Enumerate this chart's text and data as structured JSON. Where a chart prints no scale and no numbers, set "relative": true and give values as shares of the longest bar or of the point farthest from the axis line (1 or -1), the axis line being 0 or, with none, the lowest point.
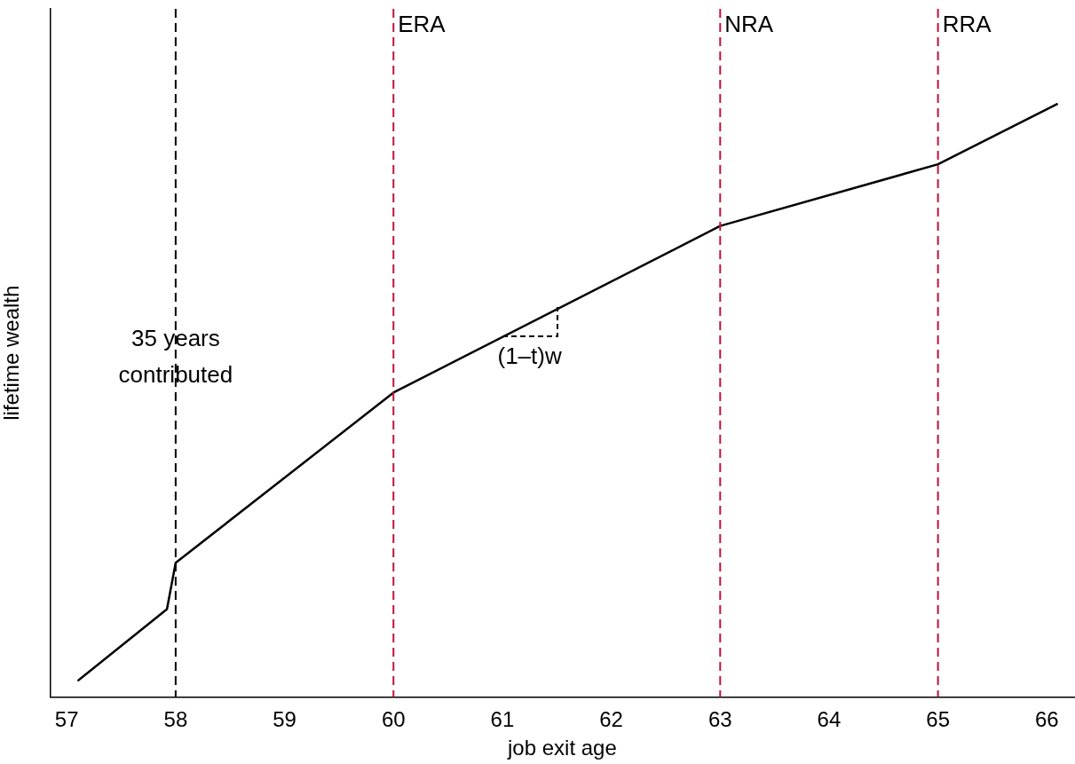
{
  "chart_data": {
    "type": "line",
    "xlabel": "job exit age",
    "ylabel": "lifetime wealth",
    "relative": true,
    "x": [
      57.1,
      57.92,
      58,
      60,
      63,
      65,
      66.1
    ],
    "series": [
      {
        "color": "#000000",
        "values": [
          0.027,
          0.148,
          0.226,
          0.513,
          0.794,
          0.898,
          1
        ]
      }
    ],
    "xlim": [
      56.85,
      66.25
    ],
    "xticks": [
      57,
      58,
      59,
      60,
      61,
      62,
      63,
      64,
      65,
      66
    ],
    "ref_lines": [
      {
        "axis": "x",
        "value": 58,
        "label": null,
        "color": "#000000",
        "line_style": "dashed"
      },
      {
        "axis": "x",
        "value": 60,
        "label": "ERA",
        "color": "#c0143c",
        "line_style": "dashed"
      },
      {
        "axis": "x",
        "value": 63,
        "label": "NRA",
        "color": "#c0143c",
        "line_style": "dashed"
      },
      {
        "axis": "x",
        "value": 65,
        "label": "RRA",
        "color": "#c0143c",
        "line_style": "dashed"
      }
    ],
    "annotations": [
      {
        "text": "35 years contributed",
        "x": 58,
        "y": 0.66
      },
      {
        "text": "(1–t)w",
        "x": 61.25,
        "y": 0.63
      }
    ],
    "grid": false,
    "legend": false,
    "marker": "none",
    "line_style": "solid"
  }
}
